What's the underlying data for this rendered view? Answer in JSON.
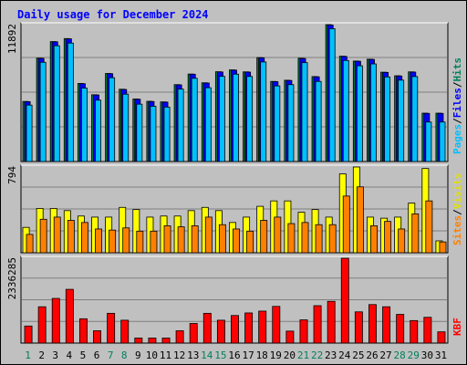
{
  "chart_data": {
    "type": "bar",
    "title": "Daily usage for December 2024",
    "days": [
      {
        "label": "1",
        "weekend": true
      },
      {
        "label": "2",
        "weekend": false
      },
      {
        "label": "3",
        "weekend": false
      },
      {
        "label": "4",
        "weekend": false
      },
      {
        "label": "5",
        "weekend": false
      },
      {
        "label": "6",
        "weekend": false
      },
      {
        "label": "7",
        "weekend": true
      },
      {
        "label": "8",
        "weekend": true
      },
      {
        "label": "9",
        "weekend": false
      },
      {
        "label": "10",
        "weekend": false
      },
      {
        "label": "11",
        "weekend": false
      },
      {
        "label": "12",
        "weekend": false
      },
      {
        "label": "13",
        "weekend": false
      },
      {
        "label": "14",
        "weekend": true
      },
      {
        "label": "15",
        "weekend": true
      },
      {
        "label": "16",
        "weekend": false
      },
      {
        "label": "17",
        "weekend": false
      },
      {
        "label": "18",
        "weekend": false
      },
      {
        "label": "19",
        "weekend": false
      },
      {
        "label": "20",
        "weekend": false
      },
      {
        "label": "21",
        "weekend": true
      },
      {
        "label": "22",
        "weekend": true
      },
      {
        "label": "23",
        "weekend": false
      },
      {
        "label": "24",
        "weekend": false
      },
      {
        "label": "25",
        "weekend": false
      },
      {
        "label": "26",
        "weekend": false
      },
      {
        "label": "27",
        "weekend": false
      },
      {
        "label": "28",
        "weekend": true
      },
      {
        "label": "29",
        "weekend": true
      },
      {
        "label": "30",
        "weekend": false
      },
      {
        "label": "31",
        "weekend": false
      }
    ],
    "panels": [
      {
        "id": "hits",
        "max_label": "11892",
        "ymax": 11892,
        "legend": [
          {
            "text": "Hits",
            "color": "#00805c"
          },
          {
            "text": "/",
            "color": "#000000"
          },
          {
            "text": "Files",
            "color": "#0000ff"
          },
          {
            "text": "/",
            "color": "#000000"
          },
          {
            "text": "Pages",
            "color": "#00c0ff"
          }
        ],
        "series": [
          {
            "name": "Hits",
            "color": "#008040",
            "values": [
              5220,
              8980,
              10420,
              10680,
              6780,
              5800,
              7650,
              6280,
              5430,
              5230,
              5180,
              6680,
              7600,
              6840,
              7800,
              7960,
              7790,
              9030,
              6960,
              7060,
              8970,
              7380,
              11890,
              9150,
              8730,
              8890,
              7760,
              7450,
              7790,
              4200,
              4200
            ]
          },
          {
            "name": "Files",
            "color": "#0000ff",
            "values": [
              5200,
              8960,
              10400,
              10660,
              6760,
              5780,
              7630,
              6260,
              5410,
              5210,
              5160,
              6660,
              7580,
              6820,
              7780,
              7940,
              7770,
              9010,
              6940,
              7040,
              8950,
              7360,
              11860,
              9130,
              8710,
              8870,
              7740,
              7430,
              7770,
              4180,
              4180
            ]
          },
          {
            "name": "Pages",
            "color": "#00c0ff",
            "values": [
              4900,
              8620,
              10060,
              10290,
              6380,
              5330,
              7280,
              5850,
              4980,
              4800,
              4730,
              6290,
              7230,
              6410,
              7400,
              7590,
              7390,
              8650,
              6570,
              6680,
              8590,
              6960,
              11540,
              8780,
              8320,
              8480,
              7350,
              7070,
              7380,
              3430,
              3430
            ]
          }
        ]
      },
      {
        "id": "visits",
        "max_label": "794",
        "ymax": 794,
        "legend": [
          {
            "text": "Visits",
            "color": "#e0e000"
          },
          {
            "text": "/",
            "color": "#000000"
          },
          {
            "text": "Sites",
            "color": "#ff8000"
          }
        ],
        "series": [
          {
            "name": "Visits",
            "color": "#ffff00",
            "values": [
              235,
              410,
              410,
              390,
              340,
              330,
              330,
              420,
              400,
              330,
              340,
              340,
              390,
              420,
              390,
              280,
              330,
              430,
              480,
              480,
              375,
              400,
              330,
              730,
              794,
              330,
              320,
              330,
              460,
              780,
              110
            ]
          },
          {
            "name": "Sites",
            "color": "#ff8000",
            "values": [
              170,
              310,
              330,
              300,
              280,
              220,
              210,
              230,
              200,
              200,
              250,
              240,
              250,
              330,
              260,
              220,
              200,
              300,
              330,
              270,
              280,
              260,
              260,
              525,
              610,
              250,
              290,
              220,
              360,
              480,
              100
            ]
          }
        ]
      },
      {
        "id": "kbf",
        "max_label": "2336285",
        "ymax": 2336285,
        "legend": [
          {
            "text": "KBF",
            "color": "#ff0000"
          }
        ],
        "series": [
          {
            "name": "KBF",
            "color": "#ff0000",
            "values": [
              470000,
              1000000,
              1230000,
              1480000,
              670000,
              340000,
              820000,
              630000,
              140000,
              140000,
              140000,
              340000,
              540000,
              820000,
              630000,
              760000,
              830000,
              880000,
              1010000,
              330000,
              640000,
              1030000,
              1150000,
              2336285,
              860000,
              1060000,
              1000000,
              790000,
              620000,
              710000,
              310000
            ]
          }
        ]
      }
    ]
  }
}
